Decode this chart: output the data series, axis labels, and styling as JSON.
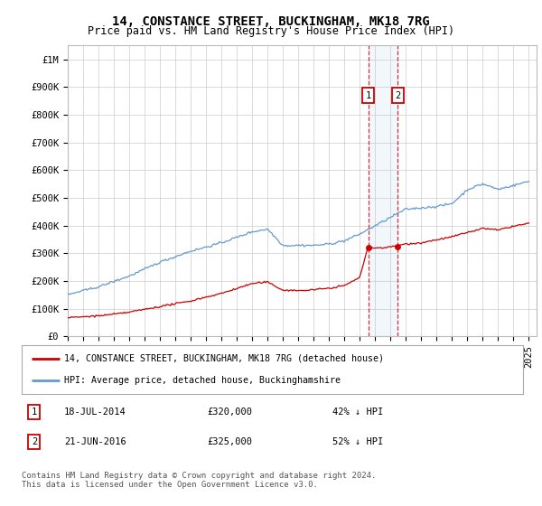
{
  "title": "14, CONSTANCE STREET, BUCKINGHAM, MK18 7RG",
  "subtitle": "Price paid vs. HM Land Registry's House Price Index (HPI)",
  "ylabel_ticks": [
    "£0",
    "£100K",
    "£200K",
    "£300K",
    "£400K",
    "£500K",
    "£600K",
    "£700K",
    "£800K",
    "£900K",
    "£1M"
  ],
  "ytick_vals": [
    0,
    100000,
    200000,
    300000,
    400000,
    500000,
    600000,
    700000,
    800000,
    900000,
    1000000
  ],
  "ylim": [
    0,
    1050000
  ],
  "xlim_start": 1995.0,
  "xlim_end": 2025.5,
  "line_red_label": "14, CONSTANCE STREET, BUCKINGHAM, MK18 7RG (detached house)",
  "line_blue_label": "HPI: Average price, detached house, Buckinghamshire",
  "sale1_date": 2014.54,
  "sale1_price": 320000,
  "sale1_label": "18-JUL-2014",
  "sale1_pct": "42% ↓ HPI",
  "sale2_date": 2016.47,
  "sale2_price": 325000,
  "sale2_label": "21-JUN-2016",
  "sale2_pct": "52% ↓ HPI",
  "footer": "Contains HM Land Registry data © Crown copyright and database right 2024.\nThis data is licensed under the Open Government Licence v3.0.",
  "red_color": "#cc0000",
  "blue_color": "#6699cc",
  "background_color": "#ffffff",
  "grid_color": "#cccccc",
  "title_fontsize": 10,
  "subtitle_fontsize": 8.5,
  "tick_fontsize": 7.5
}
